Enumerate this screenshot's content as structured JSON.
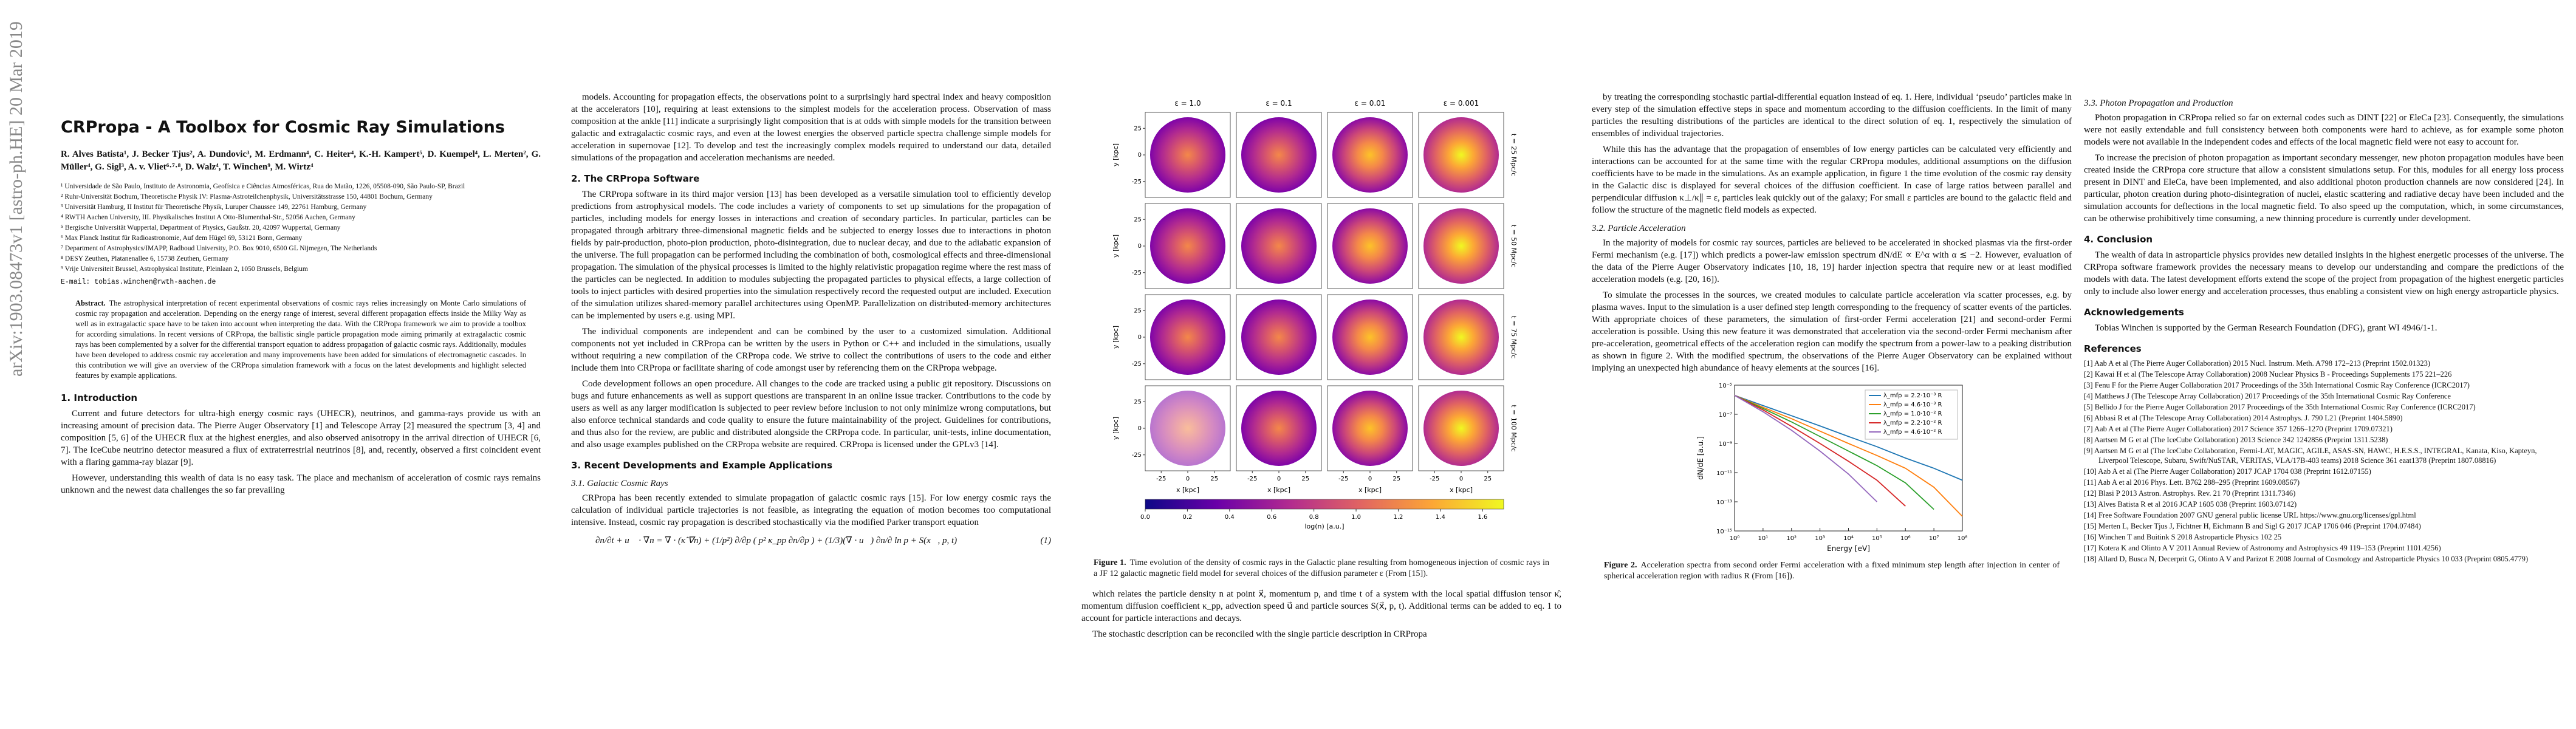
{
  "sidebar": "arXiv:1903.08473v1  [astro-ph.HE]  20 Mar 2019",
  "page1": {
    "title": "CRPropa - A Toolbox for Cosmic Ray Simulations",
    "authors": "R. Alves Batista¹, J. Becker Tjus², A. Dundovic³, M. Erdmann⁴, C. Heiter⁴, K.-H. Kampert⁵, D. Kuempel⁴, L. Merten², G. Müller⁴, G. Sigl³, A. v. Vliet⁶·⁷·⁸, D. Walz⁴, T. Winchen⁹, M. Wirtz⁴",
    "affiliations": [
      "¹ Universidade de São Paulo, Instituto de Astronomia, Geofísica e Ciências Atmosféricas, Rua do Matão, 1226, 05508-090, São Paulo-SP, Brazil",
      "² Ruhr-Universität Bochum, Theoretische Physik IV: Plasma-Astroteilchenphysik, Universitätsstrasse 150, 44801 Bochum, Germany",
      "³ Universität Hamburg, II Institut für Theoretische Physik, Luruper Chaussee 149, 22761 Hamburg, Germany",
      "⁴ RWTH Aachen University, III. Physikalisches Institut A Otto-Blumenthal-Str., 52056 Aachen, Germany",
      "⁵ Bergische Universität Wuppertal, Department of Physics, Gaußstr. 20, 42097 Wuppertal, Germany",
      "⁶ Max Planck Institut für Radioastronomie, Auf dem Hügel 69, 53121 Bonn, Germany",
      "⁷ Department of Astrophysics/IMAPP, Radboud University, P.O. Box 9010, 6500 GL Nijmegen, The Netherlands",
      "⁸ DESY Zeuthen, Platanenallee 6, 15738 Zeuthen, Germany",
      "⁹ Vrije Universiteit Brussel, Astrophysical Institute, Pleinlaan 2, 1050 Brussels, Belgium"
    ],
    "email": "E-mail: tobias.winchen@rwth-aachen.de",
    "abstract_label": "Abstract.",
    "abstract": "The astrophysical interpretation of recent experimental observations of cosmic rays relies increasingly on Monte Carlo simulations of cosmic ray propagation and acceleration. Depending on the energy range of interest, several different propagation effects inside the Milky Way as well as in extragalactic space have to be taken into account when interpreting the data. With the CRPropa framework we aim to provide a toolbox for according simulations. In recent versions of CRPropa, the ballistic single particle propagation mode aiming primarily at extragalactic cosmic rays has been complemented by a solver for the differential transport equation to address propagation of galactic cosmic rays. Additionally, modules have been developed to address cosmic ray acceleration and many improvements have been added for simulations of electromagnetic cascades. In this contribution we will give an overview of the CRPropa simulation framework with a focus on the latest developments and highlight selected features by example applications.",
    "intro_heading": "1. Introduction",
    "intro": [
      "Current and future detectors for ultra-high energy cosmic rays (UHECR), neutrinos, and gamma-rays provide us with an increasing amount of precision data. The Pierre Auger Observatory [1] and Telescope Array [2] measured the spectrum [3, 4] and composition [5, 6] of the UHECR flux at the highest energies, and also observed anisotropy in the arrival direction of UHECR [6, 7]. The IceCube neutrino detector measured a flux of extraterrestrial neutrinos [8], and, recently, observed a first coincident event with a flaring gamma-ray blazar [9].",
      "However, understanding this wealth of data is no easy task. The place and mechanism of acceleration of cosmic rays remains unknown and the newest data challenges the so far prevailing"
    ]
  },
  "page2": {
    "paragraphs": [
      "models. Accounting for propagation effects, the observations point to a surprisingly hard spectral index and heavy composition at the accelerators [10], requiring at least extensions to the simplest models for the acceleration process. Observation of mass composition at the ankle [11] indicate a surprisingly light composition that is at odds with simple models for the transition between galactic and extragalactic cosmic rays, and even at the lowest energies the observed particle spectra challenge simple models for acceleration in supernovae [12]. To develop and test the increasingly complex models required to understand our data, detailed simulations of the propagation and acceleration mechanisms are needed."
    ],
    "section2_heading": "2. The CRPropa Software",
    "section2": [
      "The CRPropa software in its third major version [13] has been developed as a versatile simulation tool to efficiently develop predictions from astrophysical models. The code includes a variety of components to set up simulations for the propagation of particles, including models for energy losses in interactions and creation of secondary particles. In particular, particles can be propagated through arbitrary three-dimensional magnetic fields and be subjected to energy losses due to interactions in photon fields by pair-production, photo-pion production, photo-disintegration, due to nuclear decay, and due to the adiabatic expansion of the universe. The full propagation can be performed including the combination of both, cosmological effects and three-dimensional propagation. The simulation of the physical processes is limited to the highly relativistic propagation regime where the rest mass of the particles can be neglected. In addition to modules subjecting the propagated particles to physical effects, a large collection of tools to inject particles with desired properties into the simulation respectively record the requested output are included. Execution of the simulation utilizes shared-memory parallel architectures using OpenMP. Parallelization on distributed-memory architectures can be implemented by users e.g. using MPI.",
      "The individual components are independent and can be combined by the user to a customized simulation. Additional components not yet included in CRPropa can be written by the users in Python or C++ and included in the simulations, usually without requiring a new compilation of the CRPropa code. We strive to collect the contributions of users to the code and either include them into CRPropa or facilitate sharing of code amongst user by referencing them on the CRPropa webpage.",
      "Code development follows an open procedure. All changes to the code are tracked using a public git repository. Discussions on bugs and future enhancements as well as support questions are transparent in an online issue tracker. Contributions to the code by users as well as any larger modification is subjected to peer review before inclusion to not only minimize wrong computations, but also enforce technical standards and code quality to ensure the future maintainability of the project. Guidelines for contributions, and thus also for the review, are public and distributed alongside the CRPropa code. In particular, unit-tests, inline documentation, and also usage examples published on the CRPropa website are required. CRPropa is licensed under the GPLv3 [14]."
    ],
    "section3_heading": "3. Recent Developments and Example Applications",
    "section31_heading": "3.1. Galactic Cosmic Rays",
    "section31": [
      "CRPropa has been recently extended to simulate propagation of galactic cosmic rays [15]. For low energy cosmic rays the calculation of individual particle trajectories is not feasible, as integrating the equation of motion becomes too computational intensive. Instead, cosmic ray propagation is described stochastically via the modified Parker transport equation"
    ],
    "equation": "∂n/∂t + u⃗ · ∇n = ∇ · (κ̂ ∇n) + (1/p²) ∂/∂p ( p² κ_pp ∂n/∂p ) + (1/3)(∇ · u⃗) ∂n/∂ ln p + S(x⃗, p, t)",
    "equation_number": "(1)"
  },
  "figure1": {
    "column_titles": [
      "ε = 1.0",
      "ε = 0.1",
      "ε = 0.01",
      "ε = 0.001"
    ],
    "row_labels": [
      "t = 25 Mpc/c",
      "t = 50 Mpc/c",
      "t = 75 Mpc/c",
      "t = 100 Mpc/c"
    ],
    "x_label": "x [kpc]",
    "y_label": "y [kpc]",
    "axis_lim": [
      -40,
      40
    ],
    "axis_ticks": [
      -25,
      0,
      25
    ],
    "colorbar_label": "log(n) [a.u.]",
    "colorbar_lim": [
      0,
      1.7
    ],
    "colorbar_ticks": [
      {
        "value": 0,
        "label": "0.0"
      },
      {
        "value": 0.2,
        "label": "0.2"
      },
      {
        "value": 0.4,
        "label": "0.4"
      },
      {
        "value": 0.6,
        "label": "0.6"
      },
      {
        "value": 0.8,
        "label": "0.8"
      },
      {
        "value": 1,
        "label": "1.0"
      },
      {
        "value": 1.2,
        "label": "1.2"
      },
      {
        "value": 1.4,
        "label": "1.4"
      },
      {
        "value": 1.6,
        "label": "1.6"
      }
    ],
    "caption_label": "Figure 1.",
    "caption": "Time evolution of the density of cosmic rays in the Galactic plane resulting from homogeneous injection of cosmic rays in a JF 12 galactic magnetic field model for several choices of the diffusion parameter ε (From [15])."
  },
  "page3": {
    "paragraphs": [
      "which relates the particle density n at point x⃗, momentum p, and time t of a system with the local spatial diffusion tensor κ̂, momentum diffusion coefficient κ_pp, advection speed u⃗ and particle sources S(x⃗, p, t). Additional terms can be added to eq. 1 to account for particle interactions and decays.",
      "The stochastic description can be reconciled with the single particle description in CRPropa"
    ]
  },
  "page4": {
    "paragraphs": [
      "by treating the corresponding stochastic partial-differential equation instead of eq. 1. Here, individual ‘pseudo’ particles make in every step of the simulation effective steps in space and momentum according to the diffusion coefficients. In the limit of many particles the resulting distributions of the particles are identical to the direct solution of eq. 1, respectively the simulation of ensembles of individual trajectories.",
      "While this has the advantage that the propagation of ensembles of low energy particles can be calculated very efficiently and interactions can be accounted for at the same time with the regular CRPropa modules, additional assumptions on the diffusion coefficients have to be made in the simulations. As an example application, in figure 1 the time evolution of the cosmic ray density in the Galactic disc is displayed for several choices of the diffusion coefficient. In case of large ratios between parallel and perpendicular diffusion κ⊥/κ∥ = ε, particles leak quickly out of the galaxy; For small ε particles are bound to the galactic field and follow the structure of the magnetic field models as expected."
    ],
    "section32_heading": "3.2. Particle Acceleration",
    "section32": [
      "In the majority of models for cosmic ray sources, particles are believed to be accelerated in shocked plasmas via the first-order Fermi mechanism (e.g. [17]) which predicts a power-law emission spectrum dN/dE ∝ E^α with α ≲ −2. However, evaluation of the data of the Pierre Auger Observatory indicates [10, 18, 19] harder injection spectra that require new or at least modified acceleration models (e.g. [20, 16]).",
      "To simulate the processes in the sources, we created modules to calculate particle acceleration via scatter processes, e.g. by plasma waves. Input to the simulation is a user defined step length corresponding to the frequency of scatter events of the particles. With appropriate choices of these parameters, the simulation of first-order Fermi acceleration [21] and second-order Fermi acceleration is possible. Using this new feature it was demonstrated that acceleration via the second-order Fermi mechanism after pre-acceleration, geometrical effects of the acceleration region can modify the spectrum from a power-law to a peaking distribution as shown in figure 2. With the modified spectrum, the observations of the Pierre Auger Observatory can be explained without implying an unexpected high abundance of heavy elements at the sources [16]."
    ],
    "figure2": {
      "type": "line",
      "x_label": "Energy [eV]",
      "y_label": "dN/dE [a.u.]",
      "log_x": true,
      "log_y": true,
      "x": [
        1,
        10,
        100,
        1000,
        10000,
        100000,
        1000000,
        10000000,
        100000000
      ],
      "xlim": [
        1,
        100000000
      ],
      "xticks": [
        {
          "value": 1,
          "label": "10⁰"
        },
        {
          "value": 10,
          "label": "10¹"
        },
        {
          "value": 100,
          "label": "10²"
        },
        {
          "value": 1000,
          "label": "10³"
        },
        {
          "value": 10000,
          "label": "10⁴"
        },
        {
          "value": 100000,
          "label": "10⁵"
        },
        {
          "value": 1000000,
          "label": "10⁶"
        },
        {
          "value": 10000000,
          "label": "10⁷"
        },
        {
          "value": 100000000,
          "label": "10⁸"
        }
      ],
      "ylim": [
        1e-15,
        1e-05
      ],
      "yticks": [
        {
          "value": 1e-15,
          "label": "10⁻¹⁵"
        },
        {
          "value": 1e-13,
          "label": "10⁻¹³"
        },
        {
          "value": 1e-11,
          "label": "10⁻¹¹"
        },
        {
          "value": 1e-09,
          "label": "10⁻⁹"
        },
        {
          "value": 1e-07,
          "label": "10⁻⁷"
        },
        {
          "value": 1e-05,
          "label": "10⁻⁵"
        }
      ],
      "legend_corner": "upper right",
      "series": [
        {
          "name": "λ_mfp = 2.2·10⁻³ R",
          "color": "#1f77b4",
          "values": [
            2e-06,
            4e-07,
            8e-08,
            1.6e-08,
            3e-09,
            6e-10,
            1e-10,
            2e-11,
            3e-12
          ]
        },
        {
          "name": "λ_mfp = 4.6·10⁻³ R",
          "color": "#ff7f0e",
          "values": [
            2e-06,
            3e-07,
            5e-08,
            7e-09,
            1e-09,
            1.5e-10,
            2e-11,
            1e-12,
            1e-14
          ]
        },
        {
          "name": "λ_mfp = 1.0·10⁻² R",
          "color": "#2ca02c",
          "values": [
            2e-06,
            2.5e-07,
            3e-08,
            3e-09,
            3e-10,
            3e-11,
            2e-12,
            3e-14,
            null
          ]
        },
        {
          "name": "λ_mfp = 2.2·10⁻² R",
          "color": "#d62728",
          "values": [
            2e-06,
            2e-07,
            1.5e-08,
            1e-09,
            6e-11,
            3e-12,
            5e-14,
            null,
            null
          ]
        },
        {
          "name": "λ_mfp = 4.6·10⁻² R",
          "color": "#9467bd",
          "values": [
            2e-06,
            1.5e-07,
            8e-09,
            3e-10,
            8e-12,
            1e-13,
            null,
            null,
            null
          ]
        }
      ],
      "caption_label": "Figure 2.",
      "caption": "Acceleration spectra from second order Fermi acceleration with a fixed minimum step length after injection in center of spherical acceleration region with radius R (From [16])."
    }
  },
  "page5": {
    "section33_heading": "3.3. Photon Propagation and Production",
    "section33": [
      "Photon propagation in CRPropa relied so far on external codes such as DINT [22] or EleCa [23]. Consequently, the simulations were not easily extendable and full consistency between both components were hard to achieve, as for example some photon models were not available in the independent codes and effects of the local magnetic field were not easy to account for.",
      "To increase the precision of photon propagation as important secondary messenger, new photon propagation modules have been created inside the CRPropa core structure that allow a consistent simulations setup. For this, modules for all energy loss process present in DINT and EleCa, have been implemented, and also additional photon production channels are now considered [24]. In particular, photon creation during photo-disintegration of nuclei, elastic scattering and radiative decay have been included and the simulation accounts for deflections in the local magnetic field. To also speed up the computation, which, in some circumstances, can be otherwise prohibitively time consuming, a new thinning procedure is currently under development."
    ],
    "section4_heading": "4. Conclusion",
    "section4": [
      "The wealth of data in astroparticle physics provides new detailed insights in the highest energetic processes of the universe. The CRPropa software framework provides the necessary means to develop our understanding and compare the predictions of the models with data. The latest development efforts extend the scope of the project from propagation of the highest energetic particles only to include also lower energy and acceleration processes, thus enabling a consistent view on high energy astroparticle physics."
    ],
    "ack_heading": "Acknowledgements",
    "ack": "Tobias Winchen is supported by the German Research Foundation (DFG), grant WI 4946/1-1.",
    "references_heading": "References",
    "references": [
      "[1] Aab A et al (The Pierre Auger Collaboration) 2015 Nucl. Instrum. Meth. A798 172–213 (Preprint 1502.01323)",
      "[2] Kawai H et al (The Telescope Array Collaboration) 2008 Nuclear Physics B - Proceedings Supplements 175 221–226",
      "[3] Fenu F for the Pierre Auger Collaboration 2017 Proceedings of the 35th International Cosmic Ray Conference (ICRC2017)",
      "[4] Matthews J (The Telescope Array Collaboration) 2017 Proceedings of the 35th International Cosmic Ray Conference",
      "[5] Bellido J for the Pierre Auger Collaboration 2017 Proceedings of the 35th International Cosmic Ray Conference (ICRC2017)",
      "[6] Abbasi R et al (The Telescope Array Collaboration) 2014 Astrophys. J. 790 L21 (Preprint 1404.5890)",
      "[7] Aab A et al (The Pierre Auger Collaboration) 2017 Science 357 1266–1270 (Preprint 1709.07321)",
      "[8] Aartsen M G et al (The IceCube Collaboration) 2013 Science 342 1242856 (Preprint 1311.5238)",
      "[9] Aartsen M G et al (The IceCube Collaboration, Fermi-LAT, MAGIC, AGILE, ASAS-SN, HAWC, H.E.S.S., INTEGRAL, Kanata, Kiso, Kapteyn, Liverpool Telescope, Subaru, Swift/NuSTAR, VERITAS, VLA/17B-403 teams) 2018 Science 361 eaat1378 (Preprint 1807.08816)",
      "[10] Aab A et al (The Pierre Auger Collaboration) 2017 JCAP 1704 038 (Preprint 1612.07155)",
      "[11] Aab A et al 2016 Phys. Lett. B762 288–295 (Preprint 1609.08567)",
      "[12] Blasi P 2013 Astron. Astrophys. Rev. 21 70 (Preprint 1311.7346)",
      "[13] Alves Batista R et al 2016 JCAP 1605 038 (Preprint 1603.07142)",
      "[14] Free Software Foundation 2007 GNU general public license URL https://www.gnu.org/licenses/gpl.html",
      "[15] Merten L, Becker Tjus J, Fichtner H, Eichmann B and Sigl G 2017 JCAP 1706 046 (Preprint 1704.07484)",
      "[16] Winchen T and Buitink S 2018 Astroparticle Physics 102 25",
      "[17] Kotera K and Olinto A V 2011 Annual Review of Astronomy and Astrophysics 49 119–153 (Preprint 1101.4256)",
      "[18] Allard D, Busca N, Decerprit G, Olinto A V and Parizot E 2008 Journal of Cosmology and Astroparticle Physics 10 033 (Preprint 0805.4779)"
    ]
  }
}
